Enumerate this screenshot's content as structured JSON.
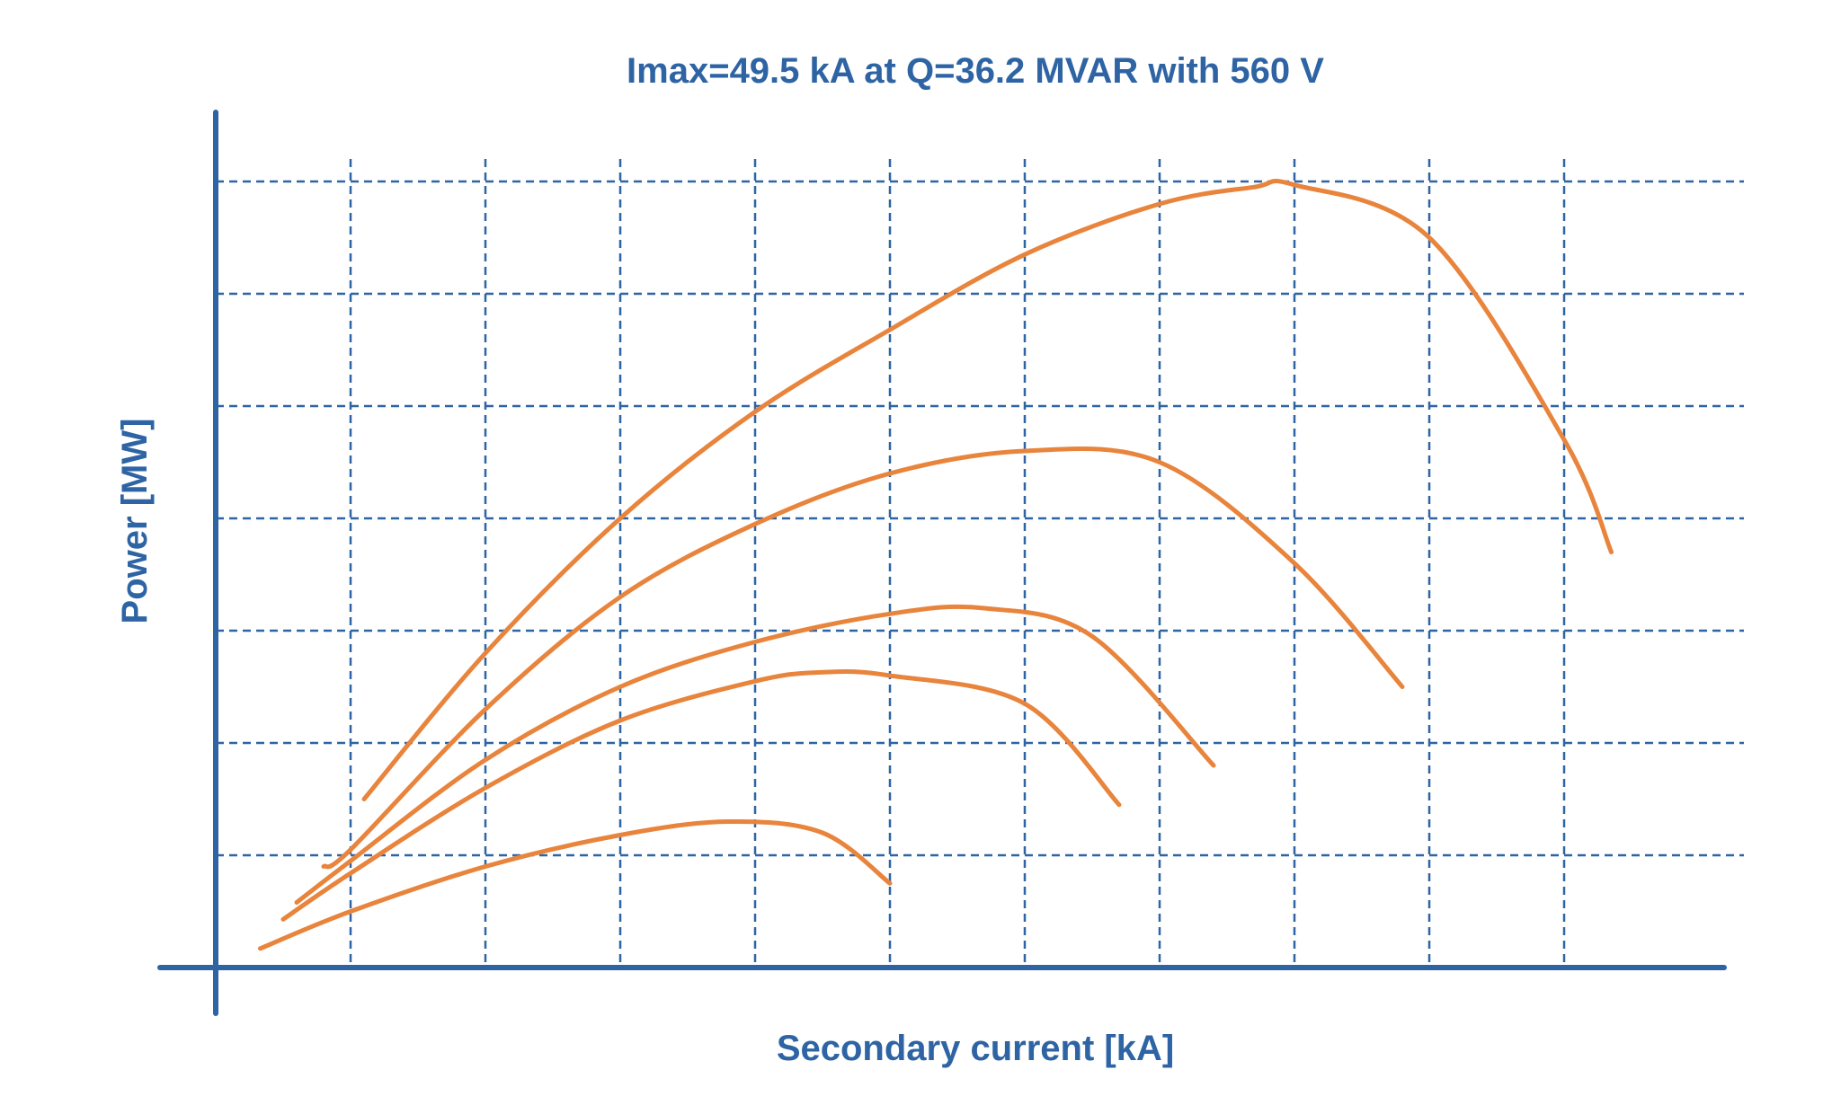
{
  "chart_data": {
    "type": "line",
    "title": "Imax=49.5 kA at Q=36.2 MVAR with 560 V",
    "xlabel": "Secondary current [kA]",
    "ylabel": "Power [MW]",
    "xlim": [
      0,
      11.4
    ],
    "ylim": [
      0,
      7
    ],
    "x_gridlines": [
      1,
      2,
      3,
      4,
      5,
      6,
      7,
      8,
      9,
      10
    ],
    "y_gridlines": [
      1,
      2,
      3,
      4,
      5,
      6,
      7
    ],
    "grid": true,
    "tick_labels_shown": false,
    "series_color": "#e8843c",
    "axis_color": "#2e64a4",
    "grid_color": "#2e64a4",
    "series": [
      {
        "points": [
          [
            0.33,
            0.17
          ],
          [
            1,
            0.5
          ],
          [
            2,
            0.9
          ],
          [
            3,
            1.18
          ],
          [
            3.8,
            1.3
          ],
          [
            4.5,
            1.2
          ],
          [
            5,
            0.75
          ]
        ]
      },
      {
        "points": [
          [
            0.5,
            0.43
          ],
          [
            1,
            0.84
          ],
          [
            2,
            1.6
          ],
          [
            3,
            2.2
          ],
          [
            4,
            2.55
          ],
          [
            4.5,
            2.63
          ],
          [
            5,
            2.6
          ],
          [
            6,
            2.35
          ],
          [
            6.7,
            1.45
          ]
        ]
      },
      {
        "points": [
          [
            0.6,
            0.58
          ],
          [
            1,
            0.95
          ],
          [
            2,
            1.85
          ],
          [
            3,
            2.5
          ],
          [
            4,
            2.9
          ],
          [
            5,
            3.15
          ],
          [
            5.7,
            3.2
          ],
          [
            6.5,
            2.95
          ],
          [
            7.4,
            1.8
          ]
        ]
      },
      {
        "points": [
          [
            0.8,
            0.9
          ],
          [
            1,
            1.05
          ],
          [
            2,
            2.3
          ],
          [
            3,
            3.3
          ],
          [
            4,
            3.95
          ],
          [
            5,
            4.4
          ],
          [
            6,
            4.6
          ],
          [
            7,
            4.5
          ],
          [
            8,
            3.6
          ],
          [
            8.8,
            2.5
          ]
        ]
      },
      {
        "points": [
          [
            1.1,
            1.5
          ],
          [
            2,
            2.8
          ],
          [
            3,
            4
          ],
          [
            4,
            4.95
          ],
          [
            5,
            5.68
          ],
          [
            6,
            6.35
          ],
          [
            7,
            6.8
          ],
          [
            7.7,
            6.95
          ],
          [
            8,
            6.97
          ],
          [
            9,
            6.5
          ],
          [
            10,
            4.7
          ],
          [
            10.35,
            3.7
          ]
        ]
      }
    ]
  }
}
